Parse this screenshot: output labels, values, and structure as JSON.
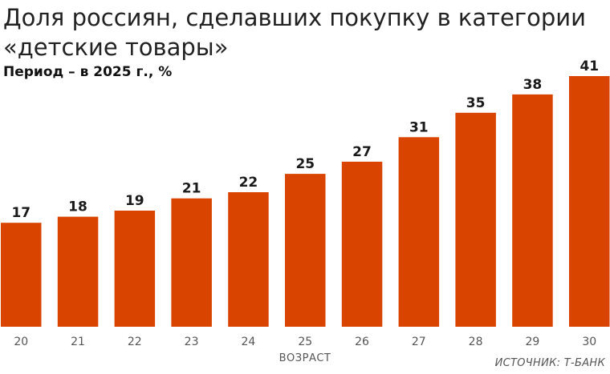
{
  "title": "Доля россиян, сделавших покупку в категории «детские товары»",
  "subtitle": "Период – в 2025 г., %",
  "source": "ИСТОЧНИК: Т-БАНК",
  "colors": {
    "bar": "#d94400",
    "axis": "#bbbbbb",
    "label": "#1a1a1a",
    "tick": "#555555"
  },
  "chart_data": {
    "type": "bar",
    "title": "Доля россиян, сделавших покупку в категории «детские товары»",
    "subtitle": "Период – в 2025 г., %",
    "xlabel": "ВОЗРАСТ",
    "ylabel": "",
    "categories": [
      "20",
      "21",
      "22",
      "23",
      "24",
      "25",
      "26",
      "27",
      "28",
      "29",
      "30"
    ],
    "values": [
      17,
      18,
      19,
      21,
      22,
      25,
      27,
      31,
      35,
      38,
      41
    ],
    "ylim": [
      0,
      41
    ],
    "grid": false,
    "legend": "none"
  }
}
